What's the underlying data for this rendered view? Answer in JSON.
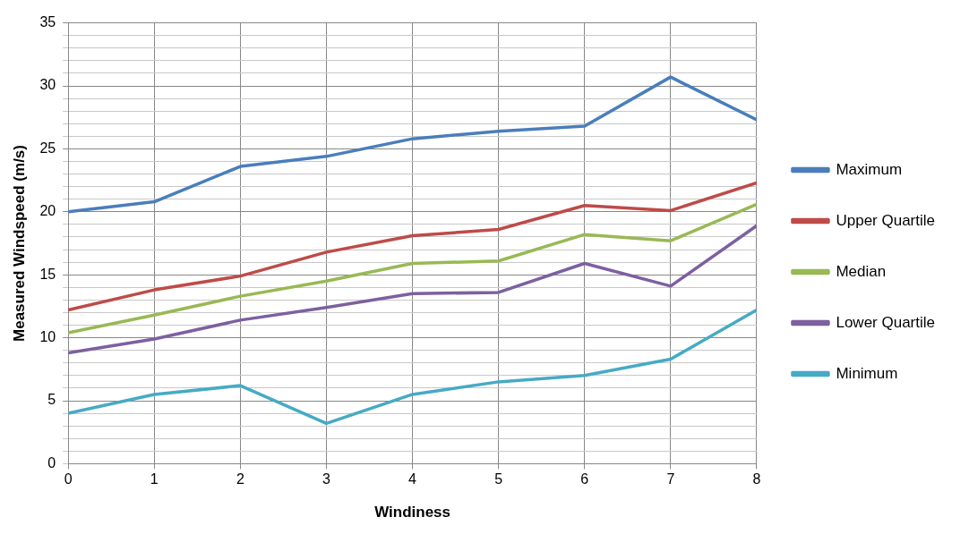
{
  "chart_data": {
    "type": "line",
    "xlabel": "Windiness",
    "ylabel": "Measured Windspeed (m/s)",
    "x": [
      0,
      1,
      2,
      3,
      4,
      5,
      6,
      7,
      8
    ],
    "series": [
      {
        "name": "Maximum",
        "color": "#4a7ebb",
        "values": [
          20.0,
          20.8,
          23.6,
          24.4,
          25.8,
          26.4,
          26.8,
          30.7,
          27.3
        ]
      },
      {
        "name": "Upper Quartile",
        "color": "#be4b48",
        "values": [
          12.2,
          13.8,
          14.9,
          16.8,
          18.1,
          18.6,
          20.5,
          20.1,
          22.3
        ]
      },
      {
        "name": "Median",
        "color": "#98b954",
        "values": [
          10.4,
          11.8,
          13.3,
          14.5,
          15.9,
          16.1,
          18.2,
          17.7,
          20.6
        ]
      },
      {
        "name": "Lower Quartile",
        "color": "#7d60a0",
        "values": [
          8.8,
          9.9,
          11.4,
          12.4,
          13.5,
          13.6,
          15.9,
          14.1,
          18.9
        ]
      },
      {
        "name": "Minimum",
        "color": "#46aac5",
        "values": [
          4.0,
          5.5,
          6.2,
          3.2,
          5.5,
          6.5,
          7.0,
          8.3,
          12.2
        ]
      }
    ],
    "xlim": [
      0,
      8
    ],
    "xticks": [
      0,
      1,
      2,
      3,
      4,
      5,
      6,
      7,
      8
    ],
    "ylim": [
      0,
      35
    ],
    "yticks": [
      0,
      {
        "value": 1,
        "label": null
      },
      {
        "value": 2,
        "label": null
      },
      {
        "value": 3,
        "label": null
      },
      {
        "value": 4,
        "label": null
      },
      5,
      {
        "value": 6,
        "label": null
      },
      {
        "value": 7,
        "label": null
      },
      {
        "value": 8,
        "label": null
      },
      {
        "value": 9,
        "label": null
      },
      10,
      {
        "value": 11,
        "label": null
      },
      {
        "value": 12,
        "label": null
      },
      {
        "value": 13,
        "label": null
      },
      {
        "value": 14,
        "label": null
      },
      15,
      {
        "value": 16,
        "label": null
      },
      {
        "value": 17,
        "label": null
      },
      {
        "value": 18,
        "label": null
      },
      {
        "value": 19,
        "label": null
      },
      20,
      {
        "value": 21,
        "label": null
      },
      {
        "value": 22,
        "label": null
      },
      {
        "value": 23,
        "label": null
      },
      {
        "value": 24,
        "label": null
      },
      25,
      {
        "value": 26,
        "label": null
      },
      {
        "value": 27,
        "label": null
      },
      {
        "value": 28,
        "label": null
      },
      {
        "value": 29,
        "label": null
      },
      30,
      {
        "value": 31,
        "label": null
      },
      {
        "value": 32,
        "label": null
      },
      {
        "value": 33,
        "label": null
      },
      {
        "value": 34,
        "label": null
      },
      35
    ],
    "grid": true,
    "legend": "right",
    "marker": "none",
    "line_style": "solid"
  }
}
